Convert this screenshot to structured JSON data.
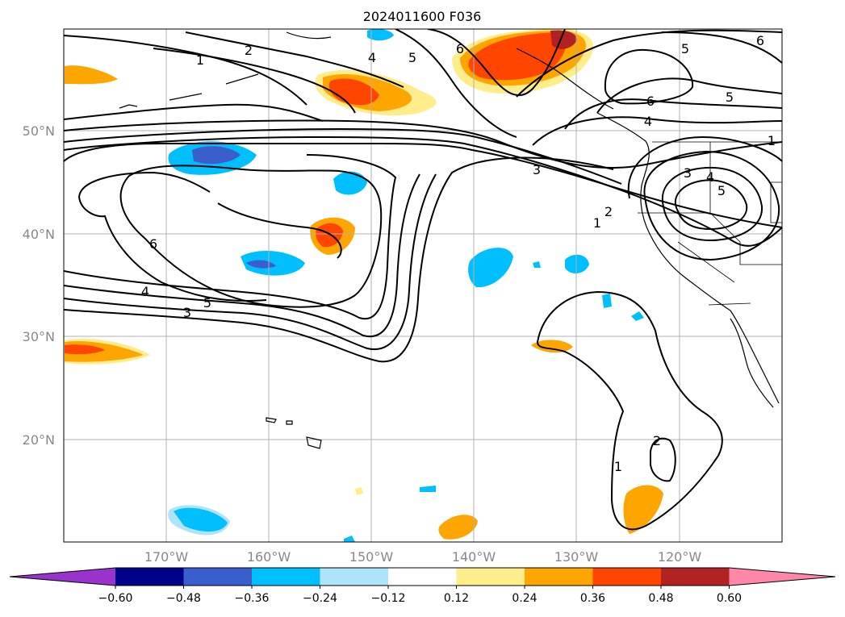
{
  "title": "2024011600 F036",
  "lat_labels": [
    "50°N",
    "40°N",
    "30°N",
    "20°N"
  ],
  "lon_labels": [
    "170°W",
    "160°W",
    "150°W",
    "140°W",
    "130°W",
    "120°W"
  ],
  "colorbar": {
    "ticks": [
      "−0.60",
      "−0.48",
      "−0.36",
      "−0.24",
      "−0.12",
      "0.12",
      "0.24",
      "0.36",
      "0.48",
      "0.60"
    ],
    "colors": [
      "#9933cc",
      "#00008b",
      "#3a5fcd",
      "#00bfff",
      "#aee4fa",
      "#ffffff",
      "#ffec8b",
      "#ffa500",
      "#ff4500",
      "#b22222",
      "#ff88aa"
    ]
  },
  "contour_labels": [
    "1",
    "2",
    "4",
    "5",
    "6",
    "6",
    "5",
    "6",
    "5",
    "4",
    "1",
    "3",
    "3",
    "4",
    "5",
    "2",
    "1",
    "6",
    "4",
    "5",
    "3",
    "2",
    "1"
  ]
}
